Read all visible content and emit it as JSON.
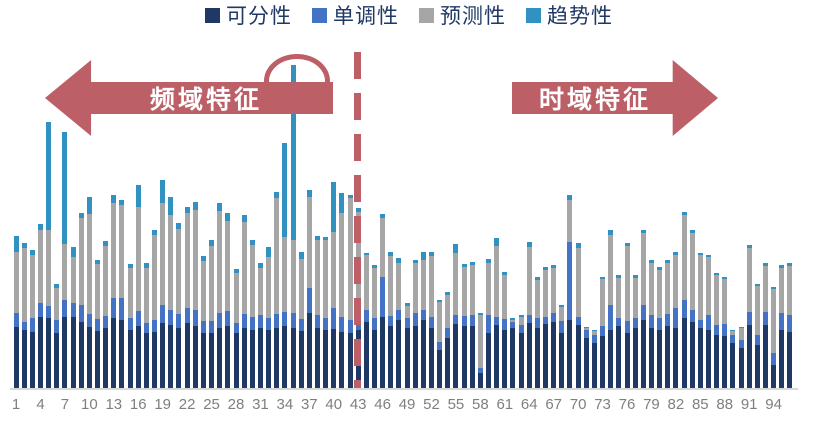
{
  "legend": {
    "items": [
      {
        "label": "可分性",
        "color": "#1f3864"
      },
      {
        "label": "单调性",
        "color": "#4472c4"
      },
      {
        "label": "预测性",
        "color": "#a6a6a6"
      },
      {
        "label": "趋势性",
        "color": "#3191c1"
      }
    ],
    "text_color": "#1f3864"
  },
  "annotations": {
    "left_arrow_label": "频域特征",
    "right_arrow_label": "时域特征",
    "arrow_color": "#bd5f66",
    "arrow_text_color": "#ffffff",
    "divider_color": "#bd5f66",
    "ellipse_color": "#bd5f66",
    "ellipse_highlight_category": 35,
    "divider_between_categories": [
      43,
      44
    ]
  },
  "axis": {
    "line_color": "#d9d9d9",
    "tick_label_color": "#7f7f7f",
    "x_tick_labels": [
      "1",
      "4",
      "7",
      "10",
      "13",
      "16",
      "19",
      "22",
      "25",
      "28",
      "31",
      "34",
      "37",
      "40",
      "43",
      "46",
      "49",
      "52",
      "55",
      "58",
      "61",
      "64",
      "67",
      "70",
      "73",
      "76",
      "79",
      "82",
      "85",
      "88",
      "91",
      "94"
    ]
  },
  "chart_data": {
    "type": "bar",
    "stacked": true,
    "title": "",
    "xlabel": "",
    "ylabel": "",
    "ylim": [
      0,
      330
    ],
    "grid": false,
    "legend_position": "top",
    "categories_range": [
      1,
      96
    ],
    "x_tick_step": 3,
    "regions": [
      {
        "label": "频域特征",
        "categories": [
          1,
          43
        ]
      },
      {
        "label": "时域特征",
        "categories": [
          44,
          96
        ]
      }
    ],
    "series": [
      {
        "name": "可分性",
        "color": "#1f3864",
        "values": [
          61,
          58,
          56,
          71,
          70,
          55,
          71,
          71,
          66,
          61,
          57,
          60,
          70,
          68,
          58,
          62,
          55,
          56,
          65,
          63,
          60,
          65,
          62,
          55,
          55,
          60,
          62,
          55,
          60,
          58,
          60,
          58,
          60,
          62,
          60,
          57,
          75,
          60,
          58,
          59,
          56,
          55,
          58,
          66,
          58,
          71,
          62,
          68,
          60,
          62,
          68,
          60,
          38,
          50,
          64,
          62,
          62,
          15,
          55,
          63,
          58,
          60,
          55,
          65,
          60,
          64,
          66,
          55,
          68,
          63,
          50,
          45,
          52,
          58,
          62,
          55,
          60,
          68,
          60,
          58,
          62,
          60,
          70,
          66,
          60,
          58,
          53,
          52,
          45,
          40,
          63,
          43,
          63,
          23,
          58,
          56
        ]
      },
      {
        "name": "单调性",
        "color": "#4472c4",
        "values": [
          14,
          8,
          14,
          14,
          12,
          13,
          17,
          14,
          17,
          13,
          12,
          12,
          20,
          22,
          12,
          15,
          10,
          12,
          18,
          15,
          14,
          15,
          16,
          12,
          12,
          15,
          15,
          10,
          14,
          13,
          13,
          12,
          14,
          14,
          15,
          12,
          25,
          13,
          12,
          21,
          15,
          13,
          30,
          12,
          12,
          40,
          10,
          10,
          10,
          13,
          10,
          11,
          8,
          10,
          9,
          10,
          11,
          5,
          18,
          8,
          11,
          6,
          8,
          8,
          10,
          7,
          9,
          12,
          78,
          8,
          8,
          8,
          10,
          25,
          8,
          12,
          10,
          15,
          13,
          12,
          12,
          20,
          18,
          12,
          8,
          15,
          10,
          12,
          8,
          8,
          13,
          10,
          13,
          12,
          17,
          17
        ]
      },
      {
        "name": "预测性",
        "color": "#a6a6a6",
        "values": [
          61,
          74,
          63,
          73,
          76,
          32,
          56,
          46,
          87,
          100,
          55,
          70,
          95,
          93,
          50,
          104,
          55,
          85,
          102,
          95,
          85,
          95,
          100,
          60,
          75,
          102,
          90,
          50,
          92,
          72,
          47,
          61,
          116,
          75,
          73,
          60,
          91,
          75,
          78,
          76,
          104,
          122,
          88,
          55,
          50,
          59,
          60,
          47,
          12,
          50,
          50,
          61,
          40,
          33,
          62,
          49,
          50,
          53,
          52,
          71,
          44,
          2,
          8,
          68,
          38,
          47,
          45,
          14,
          42,
          69,
          2,
          4,
          47,
          70,
          40,
          75,
          40,
          72,
          52,
          48,
          51,
          53,
          85,
          77,
          65,
          58,
          50,
          45,
          4,
          12,
          64,
          49,
          46,
          64,
          45,
          49
        ]
      },
      {
        "name": "趋势性",
        "color": "#3191c1",
        "values": [
          16,
          5,
          5,
          6,
          108,
          4,
          112,
          10,
          5,
          17,
          4,
          5,
          8,
          5,
          4,
          22,
          5,
          5,
          23,
          18,
          6,
          6,
          8,
          5,
          6,
          8,
          8,
          4,
          7,
          5,
          5,
          10,
          6,
          94,
          175,
          7,
          7,
          4,
          3,
          50,
          20,
          3,
          4,
          2,
          3,
          4,
          4,
          5,
          3,
          3,
          8,
          4,
          2,
          3,
          9,
          3,
          3,
          2,
          4,
          8,
          3,
          2,
          2,
          5,
          3,
          3,
          3,
          2,
          5,
          5,
          1,
          1,
          2,
          5,
          3,
          3,
          3,
          3,
          3,
          3,
          3,
          3,
          3,
          3,
          2,
          2,
          2,
          2,
          1,
          1,
          3,
          2,
          3,
          2,
          3,
          3
        ]
      }
    ]
  }
}
